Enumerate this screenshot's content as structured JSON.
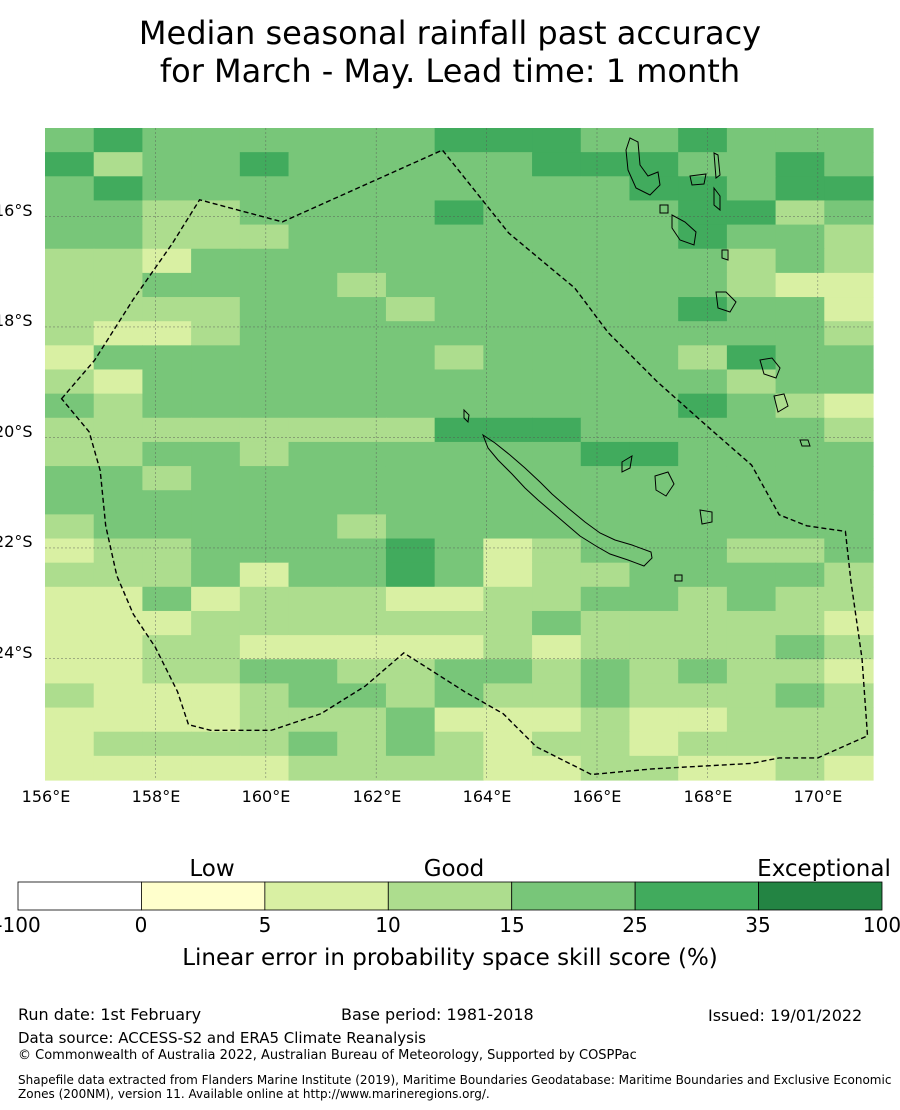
{
  "title": {
    "line1": "Median seasonal rainfall past accuracy",
    "line2": "for March - May. Lead time: 1 month"
  },
  "map": {
    "lat_labels": [
      "16°S",
      "18°S",
      "20°S",
      "22°S",
      "24°S"
    ],
    "lon_labels": [
      "156°E",
      "158°E",
      "160°E",
      "162°E",
      "164°E",
      "166°E",
      "168°E",
      "170°E"
    ],
    "lon_range": [
      156,
      171
    ],
    "lat_range": [
      -26.2,
      -14.4
    ],
    "cell_size_deg": 0.833,
    "grid_rows": [
      "45444444555445444",
      "53445444445554454",
      "45444444444455455",
      "44334444544445534",
      "44333444444445443",
      "33244444444444343",
      "33444434444444322",
      "33334443444445442",
      "32234444444444443",
      "24444444344443544",
      "32444444444444344",
      "43444444444445432",
      "33333333555444443",
      "33443444444554444",
      "44344444444444444",
      "44444444444444444",
      "34444434444444444",
      "23344445423444334",
      "33342445423344443",
      "22423332233443433",
      "22233333334333332",
      "22332222232333343",
      "22334433443434332",
      "32223443433433343",
      "22223334222322333",
      "23333434323323333",
      "22222333322332232"
    ],
    "color_bins": [
      "#ffffff",
      "#ffffcc",
      "#d9f0a3",
      "#addd8e",
      "#78c679",
      "#41ab5d",
      "#238443"
    ],
    "eez_boundary": [
      [
        156.3,
        -19.3
      ],
      [
        156.9,
        -18.6
      ],
      [
        157.6,
        -17.5
      ],
      [
        158.3,
        -16.5
      ],
      [
        158.8,
        -15.7
      ],
      [
        160.3,
        -16.1
      ],
      [
        163.2,
        -14.8
      ],
      [
        164.4,
        -16.3
      ],
      [
        165.6,
        -17.3
      ],
      [
        166.2,
        -18.1
      ],
      [
        167.1,
        -19.0
      ],
      [
        168.0,
        -19.8
      ],
      [
        168.8,
        -20.5
      ],
      [
        169.3,
        -21.4
      ],
      [
        169.8,
        -21.6
      ],
      [
        170.5,
        -21.7
      ],
      [
        170.6,
        -22.6
      ],
      [
        170.8,
        -24.0
      ],
      [
        170.9,
        -25.4
      ],
      [
        170.0,
        -25.8
      ],
      [
        169.3,
        -25.8
      ],
      [
        168.8,
        -25.9
      ],
      [
        167.0,
        -26.0
      ],
      [
        165.9,
        -26.1
      ],
      [
        164.9,
        -25.6
      ],
      [
        164.3,
        -25.0
      ],
      [
        163.6,
        -24.6
      ],
      [
        162.5,
        -23.9
      ],
      [
        161.8,
        -24.5
      ],
      [
        161.0,
        -25.0
      ],
      [
        160.1,
        -25.3
      ],
      [
        159.0,
        -25.3
      ],
      [
        158.6,
        -25.2
      ],
      [
        158.4,
        -24.6
      ],
      [
        158.0,
        -23.8
      ],
      [
        157.6,
        -23.2
      ],
      [
        157.3,
        -22.5
      ],
      [
        157.1,
        -21.6
      ],
      [
        157.0,
        -20.6
      ],
      [
        156.8,
        -19.9
      ],
      [
        156.3,
        -19.3
      ]
    ]
  },
  "colorbar": {
    "categories": [
      "Low",
      "Good",
      "Exceptional"
    ],
    "ticks": [
      "-100",
      "0",
      "5",
      "10",
      "15",
      "25",
      "35",
      "100"
    ],
    "colors": [
      "#ffffff",
      "#ffffcc",
      "#d9f0a3",
      "#addd8e",
      "#78c679",
      "#41ab5d",
      "#238443"
    ],
    "label": "Linear error in probability space skill score (%)"
  },
  "footer": {
    "run_date": "Run date: 1st February",
    "base_period": "Base period: 1981-2018",
    "issued": "Issued: 19/01/2022",
    "data_source": "Data source: ACCESS-S2 and ERA5 Climate Reanalysis",
    "copyright": "© Commonwealth of Australia 2022, Australian Bureau of Meteorology, Supported by COSPPac",
    "shapefile": "Shapefile data extracted from Flanders Marine Institute (2019), Maritime Boundaries Geodatabase: Maritime Boundaries and Exclusive Economic Zones (200NM), version 11. Available online at http://www.marineregions.org/."
  }
}
